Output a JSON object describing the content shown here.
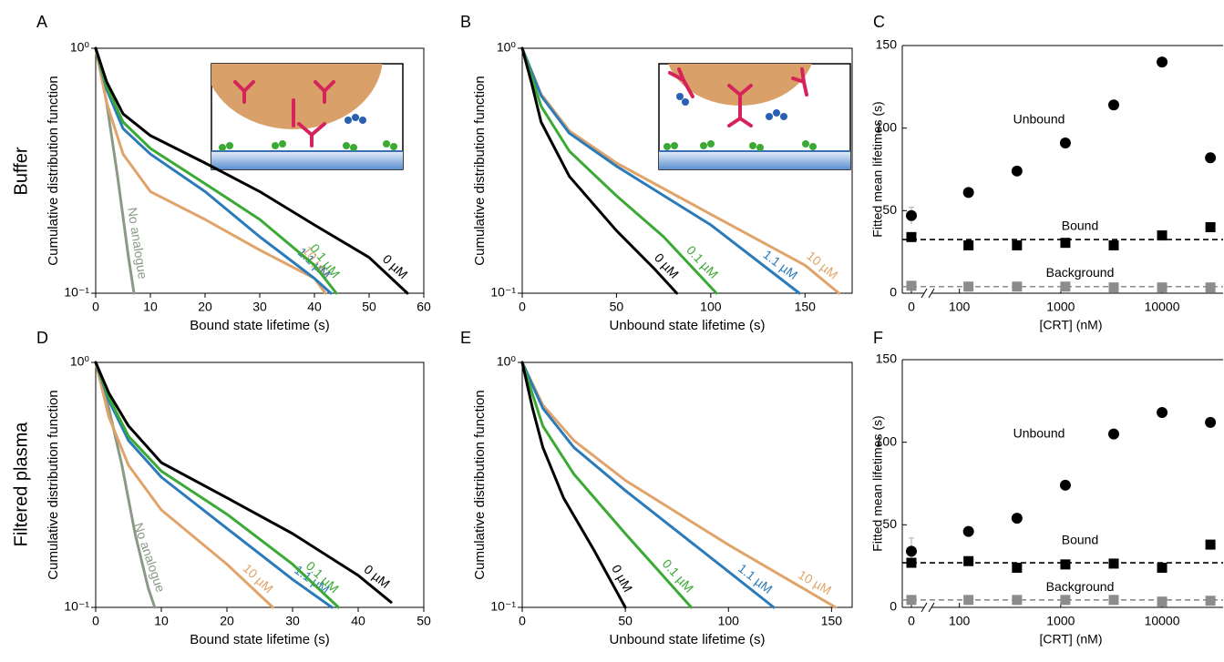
{
  "row_labels": [
    "Buffer",
    "Filtered plasma"
  ],
  "chart_data": [
    {
      "panel": "A",
      "type": "line",
      "xlabel": "Bound state lifetime (s)",
      "ylabel": "Cumulative distribution function",
      "xlim": [
        0,
        60
      ],
      "xticks": [
        0,
        10,
        20,
        30,
        40,
        50,
        60
      ],
      "ylim": [
        0.1,
        1
      ],
      "yticks": [
        {
          "value": 0.1,
          "label": "10⁻¹"
        },
        {
          "value": 1,
          "label": "10⁰"
        }
      ],
      "log_y": true,
      "series": [
        {
          "name": "No analogue",
          "color": "#8a9a87",
          "x": [
            0,
            2,
            4,
            6,
            7
          ],
          "values": [
            1,
            0.6,
            0.3,
            0.14,
            0.1
          ]
        },
        {
          "name": "10 µM",
          "color": "#e0a46a",
          "x": [
            0,
            2,
            5,
            10,
            20,
            30,
            40,
            42
          ],
          "values": [
            1,
            0.6,
            0.37,
            0.26,
            0.2,
            0.15,
            0.115,
            0.1
          ]
        },
        {
          "name": "1.1 µM",
          "color": "#2b7bba",
          "x": [
            0,
            2,
            5,
            10,
            20,
            30,
            40,
            43
          ],
          "values": [
            1,
            0.68,
            0.47,
            0.37,
            0.26,
            0.17,
            0.115,
            0.1
          ]
        },
        {
          "name": "0.1 µM",
          "color": "#3aaa35",
          "x": [
            0,
            2,
            5,
            10,
            20,
            30,
            40,
            44
          ],
          "values": [
            1,
            0.7,
            0.5,
            0.39,
            0.28,
            0.2,
            0.13,
            0.1
          ]
        },
        {
          "name": "0 µM",
          "color": "#000000",
          "x": [
            0,
            2,
            5,
            10,
            20,
            30,
            40,
            50,
            57
          ],
          "values": [
            1,
            0.73,
            0.54,
            0.44,
            0.34,
            0.26,
            0.19,
            0.14,
            0.1
          ]
        }
      ]
    },
    {
      "panel": "B",
      "type": "line",
      "xlabel": "Unbound state lifetime (s)",
      "ylabel": "Cumulative distribution function",
      "xlim": [
        0,
        175
      ],
      "xticks": [
        0,
        50,
        100,
        150
      ],
      "ylim": [
        0.1,
        1
      ],
      "yticks": [
        {
          "value": 0.1,
          "label": "10⁻¹"
        },
        {
          "value": 1,
          "label": "10⁰"
        }
      ],
      "log_y": true,
      "series": [
        {
          "name": "10 µM",
          "color": "#e0a46a",
          "x": [
            0,
            10,
            25,
            50,
            100,
            150,
            168
          ],
          "values": [
            1,
            0.65,
            0.46,
            0.34,
            0.21,
            0.13,
            0.1
          ]
        },
        {
          "name": "1.1 µM",
          "color": "#2b7bba",
          "x": [
            0,
            10,
            25,
            50,
            100,
            147
          ],
          "values": [
            1,
            0.64,
            0.45,
            0.33,
            0.19,
            0.1
          ]
        },
        {
          "name": "0.1 µM",
          "color": "#3aaa35",
          "x": [
            0,
            10,
            25,
            50,
            75,
            103
          ],
          "values": [
            1,
            0.58,
            0.38,
            0.25,
            0.17,
            0.1
          ]
        },
        {
          "name": "0 µM",
          "color": "#000000",
          "x": [
            0,
            5,
            10,
            25,
            50,
            70,
            82
          ],
          "values": [
            1,
            0.72,
            0.5,
            0.3,
            0.18,
            0.126,
            0.1
          ]
        }
      ]
    },
    {
      "panel": "C",
      "type": "scatter",
      "xlabel": "[CRT] (nM)",
      "ylabel": "Fitted mean lifetimes (s)",
      "x": [
        0,
        123,
        370,
        1111,
        3333,
        10000,
        30000
      ],
      "xlim": [
        60,
        40000
      ],
      "xticks": [
        0,
        100,
        1000,
        10000
      ],
      "log_x": true,
      "axis_break": true,
      "ylim": [
        0,
        150
      ],
      "yticks": [
        0,
        50,
        100,
        150
      ],
      "series": [
        {
          "name": "Unbound",
          "color": "#000000",
          "marker": "circle",
          "values": [
            47,
            61,
            74,
            91,
            114,
            140,
            82
          ],
          "errors": [
            5,
            null,
            null,
            null,
            null,
            null,
            null
          ]
        },
        {
          "name": "Bound",
          "color": "#000000",
          "marker": "square",
          "values": [
            34,
            29,
            29,
            30.5,
            29,
            35,
            40
          ],
          "reference": 32.5
        },
        {
          "name": "Background",
          "color": "#8c8c8c",
          "marker": "square",
          "values": [
            4.5,
            4,
            4,
            4,
            3.5,
            3.5,
            3.5
          ],
          "reference": 4
        }
      ]
    },
    {
      "panel": "D",
      "type": "line",
      "xlabel": "Bound state lifetime (s)",
      "ylabel": "Cumulative distribution function",
      "xlim": [
        0,
        50
      ],
      "xticks": [
        0,
        10,
        20,
        30,
        40,
        50
      ],
      "ylim": [
        0.1,
        1
      ],
      "yticks": [
        {
          "value": 0.1,
          "label": "10⁻¹"
        },
        {
          "value": 1,
          "label": "10⁰"
        }
      ],
      "log_y": true,
      "series": [
        {
          "name": "No analogue",
          "color": "#8a9a87",
          "x": [
            0,
            2,
            4,
            6,
            8,
            9
          ],
          "values": [
            1,
            0.65,
            0.38,
            0.2,
            0.12,
            0.1
          ]
        },
        {
          "name": "10 µM",
          "color": "#e0a46a",
          "x": [
            0,
            2,
            5,
            10,
            20,
            27
          ],
          "values": [
            1,
            0.6,
            0.38,
            0.25,
            0.15,
            0.1
          ]
        },
        {
          "name": "1.1 µM",
          "color": "#2b7bba",
          "x": [
            0,
            2,
            5,
            10,
            20,
            30,
            36
          ],
          "values": [
            1,
            0.7,
            0.48,
            0.34,
            0.21,
            0.13,
            0.1
          ]
        },
        {
          "name": "0.1 µM",
          "color": "#3aaa35",
          "x": [
            0,
            2,
            5,
            10,
            20,
            30,
            37
          ],
          "values": [
            1,
            0.72,
            0.5,
            0.36,
            0.24,
            0.15,
            0.1
          ]
        },
        {
          "name": "0 µM",
          "color": "#000000",
          "x": [
            0,
            2,
            5,
            10,
            20,
            30,
            40,
            45
          ],
          "values": [
            1,
            0.75,
            0.55,
            0.39,
            0.28,
            0.2,
            0.135,
            0.105
          ]
        }
      ]
    },
    {
      "panel": "E",
      "type": "line",
      "xlabel": "Unbound state lifetime (s)",
      "ylabel": "Cumulative distribution function",
      "xlim": [
        0,
        160
      ],
      "xticks": [
        0,
        50,
        100,
        150
      ],
      "ylim": [
        0.1,
        1
      ],
      "yticks": [
        {
          "value": 0.1,
          "label": "10⁻¹"
        },
        {
          "value": 1,
          "label": "10⁰"
        }
      ],
      "log_y": true,
      "series": [
        {
          "name": "10 µM",
          "color": "#e0a46a",
          "x": [
            0,
            10,
            25,
            50,
            100,
            152
          ],
          "values": [
            1,
            0.67,
            0.48,
            0.33,
            0.18,
            0.1
          ]
        },
        {
          "name": "1.1 µM",
          "color": "#2b7bba",
          "x": [
            0,
            10,
            25,
            50,
            100,
            122
          ],
          "values": [
            1,
            0.65,
            0.45,
            0.3,
            0.14,
            0.1
          ]
        },
        {
          "name": "0.1 µM",
          "color": "#3aaa35",
          "x": [
            0,
            10,
            25,
            50,
            82
          ],
          "values": [
            1,
            0.55,
            0.35,
            0.2,
            0.1
          ]
        },
        {
          "name": "0 µM",
          "color": "#000000",
          "x": [
            0,
            5,
            10,
            20,
            35,
            50
          ],
          "values": [
            1,
            0.65,
            0.45,
            0.28,
            0.17,
            0.1
          ]
        }
      ]
    },
    {
      "panel": "F",
      "type": "scatter",
      "xlabel": "[CRT] (nM)",
      "ylabel": "Fitted mean lifetimes (s)",
      "x": [
        0,
        123,
        370,
        1111,
        3333,
        10000,
        30000
      ],
      "xlim": [
        60,
        40000
      ],
      "xticks": [
        0,
        100,
        1000,
        10000
      ],
      "log_x": true,
      "axis_break": true,
      "ylim": [
        0,
        150
      ],
      "yticks": [
        0,
        50,
        100,
        150
      ],
      "series": [
        {
          "name": "Unbound",
          "color": "#000000",
          "marker": "circle",
          "values": [
            34,
            46,
            54,
            74,
            105,
            118,
            112
          ],
          "errors": [
            8,
            null,
            null,
            null,
            null,
            null,
            null
          ]
        },
        {
          "name": "Bound",
          "color": "#000000",
          "marker": "square",
          "values": [
            27,
            28,
            24,
            26,
            26.5,
            24,
            38
          ],
          "reference": 27
        },
        {
          "name": "Background",
          "color": "#8c8c8c",
          "marker": "square",
          "values": [
            4.5,
            4.5,
            4.5,
            4.5,
            4.5,
            3.5,
            4
          ],
          "reference": 4.5
        }
      ]
    }
  ]
}
